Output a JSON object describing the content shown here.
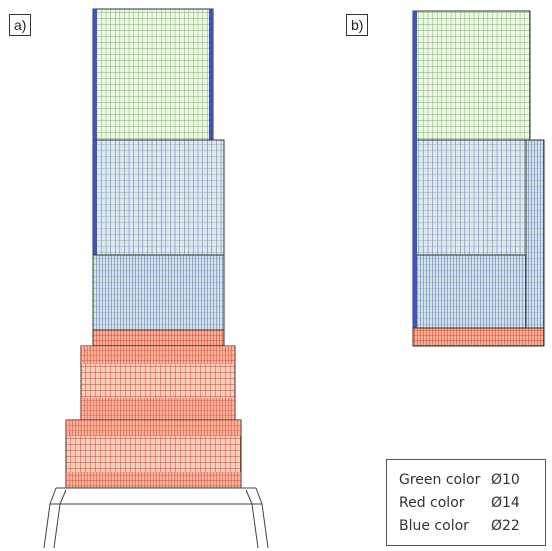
{
  "panels": [
    {
      "id": "a",
      "label": "a)"
    },
    {
      "id": "b",
      "label": "b)"
    }
  ],
  "legend": [
    {
      "name": "Green color",
      "value": "Ø10",
      "color": "#49b24a"
    },
    {
      "name": "Red color",
      "value": "Ø14",
      "color": "#e0301e"
    },
    {
      "name": "Blue color",
      "value": "Ø22",
      "color": "#3f54b8"
    }
  ],
  "colors": {
    "green_grid": "#6fb84f",
    "blue_grid": "#4a63c4",
    "red_grid": "#e23a22",
    "fill_green": "#eef6e9",
    "fill_blue": "#dfe9f3",
    "fill_red": "#f6c9b8",
    "outline": "#333333"
  }
}
